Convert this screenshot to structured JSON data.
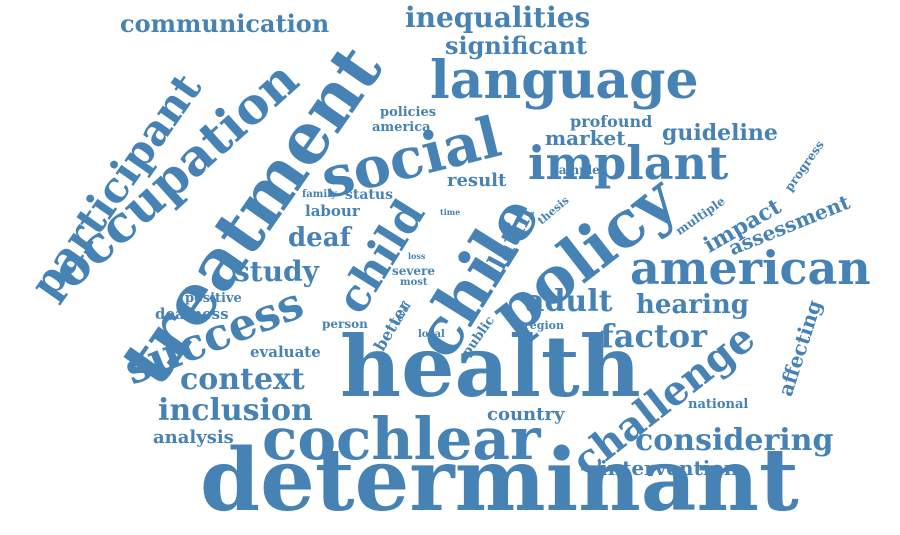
{
  "color": "#4682b4",
  "words": [
    "determinant",
    "health",
    "cochlear",
    "treatment",
    "language",
    "policy",
    "chile",
    "social",
    "occupation",
    "american",
    "participant",
    "implant",
    "success",
    "child",
    "challenge",
    "inequalities",
    "inclusion",
    "context",
    "considering",
    "communication",
    "significant",
    "adult",
    "factor",
    "study",
    "deaf",
    "guideline",
    "hearing",
    "analysis",
    "intervention",
    "assessment",
    "latin",
    "impact",
    "affecting",
    "market",
    "result",
    "country",
    "profound",
    "evaluate",
    "deafness",
    "labour",
    "status",
    "better",
    "positive",
    "policies",
    "america",
    "national",
    "public",
    "person",
    "multiple",
    "progress",
    "sample",
    "thesis",
    "region",
    "severe",
    "most",
    "family",
    "local",
    "level",
    "time",
    "loss"
  ]
}
